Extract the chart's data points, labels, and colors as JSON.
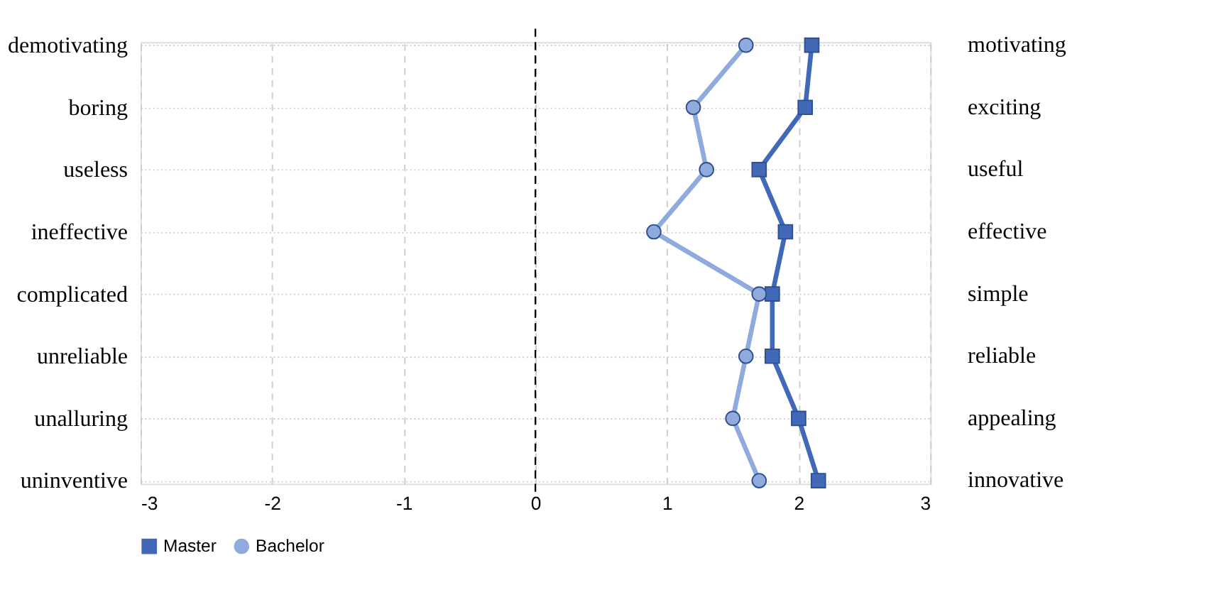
{
  "chart_data": {
    "type": "line",
    "orientation": "horizontal",
    "categories": [
      "demotivating",
      "boring",
      "useless",
      "ineffective",
      "complicated",
      "unreliable",
      "unalluring",
      "uninventive"
    ],
    "y2_categories": [
      "motivating",
      "exciting",
      "useful",
      "effective",
      "simple",
      "reliable",
      "appealing",
      "innovative"
    ],
    "series": [
      {
        "name": "Master",
        "color": "#4169b8",
        "marker": "square",
        "values": [
          2.1,
          2.05,
          1.7,
          1.9,
          1.8,
          1.8,
          2.0,
          2.15
        ]
      },
      {
        "name": "Bachelor",
        "color": "#8faadc",
        "marker": "circle",
        "values": [
          1.6,
          1.2,
          1.3,
          0.9,
          1.7,
          1.6,
          1.5,
          1.7
        ]
      }
    ],
    "xlim": [
      -3,
      3
    ],
    "xticks": [
      -3,
      -2,
      -1,
      0,
      1,
      2,
      3
    ],
    "ref_lines": [
      {
        "axis": "x",
        "value": 0,
        "color": "#000000",
        "line_style": "dashed"
      }
    ],
    "grid": true,
    "legend": "bottom",
    "line_style": "solid"
  }
}
